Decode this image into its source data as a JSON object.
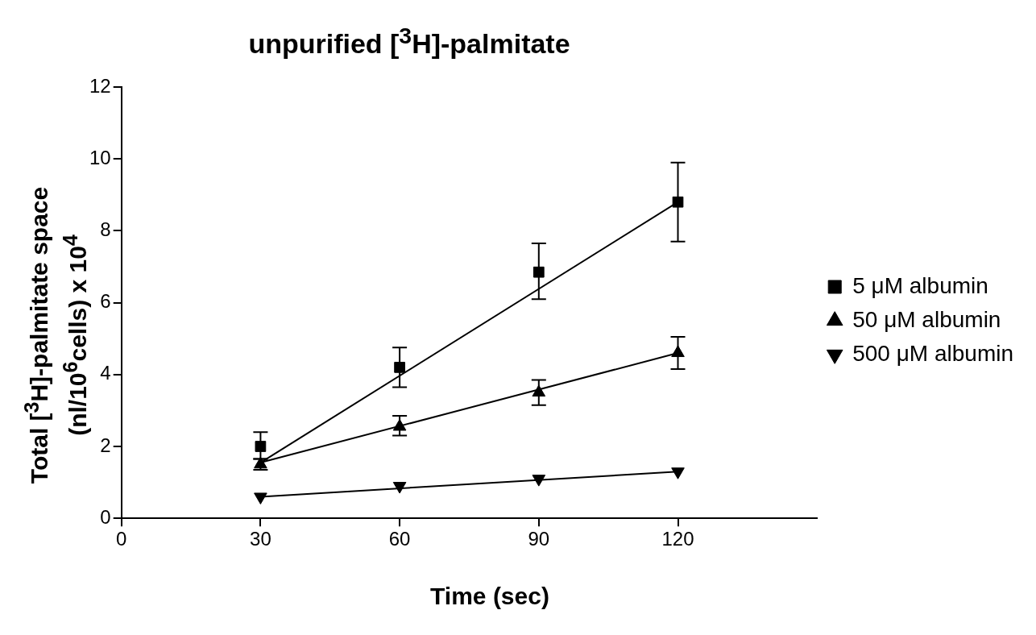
{
  "chart_data": {
    "type": "scatter",
    "title": "unpurified [$^{3}$H]-palmitate",
    "xlabel": "Time (sec)",
    "ylabel": "Total [$^{3}$H]-palmitate space (nl/10$^{6}$cells) x 10$^{4}$",
    "xlim": [
      0,
      150
    ],
    "xticks": [
      0,
      30,
      60,
      90,
      120
    ],
    "ylim": [
      0,
      12
    ],
    "yticks": [
      0,
      2,
      4,
      6,
      8,
      10,
      12
    ],
    "grid": false,
    "legend": "right",
    "series": [
      {
        "name": "5 μM albumin",
        "type": "scatter",
        "marker": "square",
        "color": "#000000",
        "x": [
          30,
          60,
          90,
          120
        ],
        "values": [
          2.0,
          4.2,
          6.85,
          8.8
        ],
        "errors": [
          [
            1.65,
            2.4
          ],
          [
            3.65,
            4.75
          ],
          [
            6.1,
            7.65
          ],
          [
            7.7,
            9.9
          ]
        ]
      },
      {
        "name": "50 μM albumin",
        "type": "scatter",
        "marker": "triangle",
        "color": "#000000",
        "x": [
          30,
          60,
          90,
          120
        ],
        "values": [
          1.5,
          2.55,
          3.5,
          4.6
        ],
        "errors": [
          [
            1.35,
            1.65
          ],
          [
            2.3,
            2.85
          ],
          [
            3.15,
            3.85
          ],
          [
            4.15,
            5.05
          ]
        ]
      },
      {
        "name": "500 μM albumin",
        "type": "scatter",
        "marker": "triangle_down",
        "color": "#000000",
        "x": [
          30,
          60,
          90,
          120
        ],
        "values": [
          0.6,
          0.9,
          1.1,
          1.3
        ]
      },
      {
        "type": "line",
        "color": "#000000",
        "x": [
          30,
          120
        ],
        "values": [
          1.55,
          8.8
        ]
      },
      {
        "type": "line",
        "color": "#000000",
        "x": [
          30,
          120
        ],
        "values": [
          1.55,
          4.6
        ]
      },
      {
        "type": "line",
        "color": "#000000",
        "x": [
          30,
          120
        ],
        "values": [
          0.6,
          1.3
        ]
      }
    ]
  }
}
